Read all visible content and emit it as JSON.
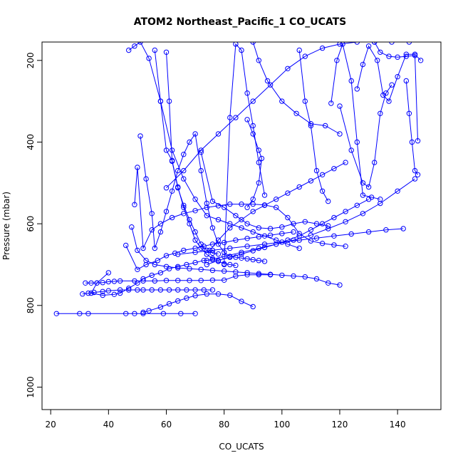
{
  "chart_data": {
    "type": "line",
    "title": "ATOM2 Northeast_Pacific_1 CO_UCATS",
    "xlabel": "CO_UCATS",
    "ylabel": "Pressure (mbar)",
    "xlim": [
      17,
      155
    ],
    "ylim": [
      1055,
      155
    ],
    "y_axis_inverted": true,
    "xticks": [
      20,
      40,
      60,
      80,
      100,
      120,
      140
    ],
    "yticks": [
      200,
      400,
      600,
      800,
      1000
    ],
    "grid": false,
    "legend": "none",
    "color": "#0000ff",
    "series": [
      {
        "x": [
          22,
          30,
          33,
          46,
          49,
          52,
          59,
          65,
          70
        ],
        "y": [
          820,
          820,
          820,
          820,
          820,
          820,
          820,
          820,
          820
        ]
      },
      {
        "x": [
          52,
          54,
          58,
          61,
          64,
          67,
          70,
          74,
          78,
          82,
          86,
          90
        ],
        "y": [
          817,
          813,
          804,
          796,
          789,
          782,
          776,
          772,
          772,
          775,
          790,
          803
        ]
      },
      {
        "x": [
          31,
          33,
          35,
          38,
          40,
          44,
          47,
          50,
          52,
          55,
          58,
          61,
          64,
          67,
          70,
          73,
          76
        ],
        "y": [
          772,
          770,
          768,
          766,
          764,
          762,
          762,
          762,
          762,
          762,
          762,
          762,
          762,
          762,
          762,
          762,
          762
        ]
      },
      {
        "x": [
          32,
          34,
          36,
          38,
          40,
          42,
          44,
          49,
          52,
          56,
          60,
          64,
          68,
          72,
          76,
          80,
          84,
          88,
          92,
          96
        ],
        "y": [
          745,
          745,
          745,
          744,
          742,
          741,
          740,
          740,
          740,
          740,
          739,
          739,
          739,
          739,
          738,
          738,
          728,
          725,
          725,
          725
        ]
      },
      {
        "x": [
          40,
          36,
          34,
          38,
          42,
          44,
          47,
          50,
          52,
          55,
          58,
          61,
          64,
          67,
          70,
          73,
          76
        ],
        "y": [
          720,
          745,
          770,
          775,
          773,
          770,
          758,
          745,
          735,
          726,
          720,
          710,
          705,
          700,
          695,
          690,
          688
        ]
      },
      {
        "x": [
          46,
          50,
          53,
          57,
          60,
          63,
          66,
          70,
          73,
          76,
          80,
          84,
          88,
          92,
          96,
          100,
          104
        ],
        "y": [
          653,
          712,
          700,
          690,
          678,
          672,
          665,
          660,
          655,
          650,
          646,
          640,
          636,
          632,
          628,
          624,
          620
        ]
      },
      {
        "x": [
          48,
          50,
          53,
          56,
          60,
          64,
          68,
          72,
          76,
          80,
          84,
          88,
          92,
          96,
          100,
          104,
          108,
          112,
          116,
          120
        ],
        "y": [
          608,
          665,
          690,
          700,
          705,
          708,
          710,
          712,
          714,
          716,
          718,
          720,
          722,
          724,
          726,
          728,
          730,
          735,
          745,
          750
        ]
      },
      {
        "x": [
          49,
          50,
          52,
          55,
          58,
          62,
          66,
          70,
          74,
          78,
          82,
          86,
          90,
          94,
          98,
          102,
          106,
          110,
          114,
          118,
          122
        ],
        "y": [
          553,
          462,
          660,
          615,
          600,
          585,
          575,
          568,
          560,
          556,
          552,
          552,
          552,
          554,
          560,
          585,
          624,
          642,
          648,
          652,
          655
        ]
      },
      {
        "x": [
          51,
          53,
          55,
          56,
          58,
          60,
          62,
          64,
          66,
          68,
          70,
          72,
          74,
          76,
          78,
          80,
          82,
          84,
          86,
          88,
          90,
          92,
          94
        ],
        "y": [
          385,
          490,
          575,
          660,
          620,
          570,
          520,
          470,
          430,
          400,
          380,
          470,
          550,
          610,
          650,
          670,
          680,
          682,
          684,
          686,
          688,
          690,
          692
        ]
      },
      {
        "x": [
          47,
          49,
          51,
          54,
          58,
          62,
          66,
          70,
          74,
          78,
          82,
          86,
          90,
          94,
          98,
          102,
          106
        ],
        "y": [
          175,
          165,
          155,
          195,
          300,
          420,
          490,
          540,
          580,
          590,
          600,
          610,
          620,
          630,
          640,
          650,
          660
        ]
      },
      {
        "x": [
          56,
          58,
          60,
          62,
          64,
          66,
          68,
          70,
          72,
          74,
          76,
          78,
          80,
          82,
          84
        ],
        "y": [
          175,
          300,
          420,
          445,
          510,
          560,
          600,
          640,
          660,
          675,
          685,
          692,
          698,
          700,
          702
        ]
      },
      {
        "x": [
          60,
          61,
          62,
          64,
          66,
          68,
          70,
          72,
          74,
          76,
          78
        ],
        "y": [
          180,
          300,
          447,
          512,
          555,
          590,
          620,
          650,
          665,
          672,
          674
        ]
      },
      {
        "x": [
          60,
          66,
          72,
          78,
          84,
          90,
          96,
          102,
          108,
          114,
          120,
          126,
          132,
          138,
          144
        ],
        "y": [
          512,
          470,
          420,
          380,
          340,
          300,
          260,
          220,
          190,
          170,
          160,
          155,
          155,
          155,
          155
        ]
      },
      {
        "x": [
          72,
          76,
          80,
          84,
          88,
          92,
          96,
          100,
          104,
          108,
          112,
          116
        ],
        "y": [
          425,
          545,
          560,
          580,
          600,
          610,
          612,
          608,
          600,
          595,
          600,
          605
        ]
      },
      {
        "x": [
          64,
          70,
          76,
          82,
          88,
          94,
          100,
          106,
          112,
          118,
          124,
          130,
          136,
          142
        ],
        "y": [
          675,
          670,
          665,
          660,
          655,
          650,
          645,
          640,
          635,
          630,
          625,
          620,
          615,
          612
        ]
      },
      {
        "x": [
          74,
          78,
          82,
          86,
          90,
          94,
          98,
          102,
          106,
          110,
          114,
          118,
          122,
          126,
          130
        ],
        "y": [
          700,
          690,
          682,
          674,
          666,
          658,
          650,
          640,
          630,
          615,
          600,
          585,
          570,
          555,
          540
        ]
      },
      {
        "x": [
          74,
          80,
          86,
          92,
          98,
          104,
          110,
          116,
          122,
          128,
          134,
          140,
          146
        ],
        "y": [
          690,
          680,
          670,
          660,
          650,
          640,
          628,
          612,
          595,
          575,
          550,
          520,
          490
        ]
      },
      {
        "x": [
          75,
          78,
          82,
          86,
          90,
          94,
          98,
          102,
          106,
          110,
          114,
          118,
          122
        ],
        "y": [
          665,
          640,
          610,
          590,
          570,
          555,
          540,
          525,
          510,
          495,
          480,
          465,
          450
        ]
      },
      {
        "x": [
          80,
          82,
          84,
          86,
          88,
          90,
          92,
          94
        ],
        "y": [
          700,
          340,
          160,
          175,
          280,
          360,
          450,
          530
        ]
      },
      {
        "x": [
          88,
          90,
          92,
          93,
          92,
          90,
          88
        ],
        "y": [
          345,
          380,
          420,
          440,
          500,
          540,
          560
        ]
      },
      {
        "x": [
          90,
          92,
          95,
          100,
          105,
          110,
          115,
          120
        ],
        "y": [
          155,
          200,
          250,
          300,
          330,
          355,
          360,
          380
        ]
      },
      {
        "x": [
          106,
          108,
          110,
          112,
          114,
          116
        ],
        "y": [
          175,
          300,
          360,
          470,
          520,
          545
        ]
      },
      {
        "x": [
          117,
          119,
          121,
          124,
          126,
          128,
          131,
          134
        ],
        "y": [
          305,
          200,
          160,
          250,
          400,
          530,
          535,
          540
        ]
      },
      {
        "x": [
          120,
          124,
          128,
          130,
          132,
          134,
          136,
          138
        ],
        "y": [
          312,
          420,
          500,
          510,
          450,
          330,
          280,
          260
        ]
      },
      {
        "x": [
          126,
          128,
          130,
          133,
          135,
          137,
          140,
          143,
          146,
          148
        ],
        "y": [
          270,
          210,
          165,
          200,
          285,
          300,
          240,
          185,
          185,
          200
        ]
      },
      {
        "x": [
          132,
          134,
          137,
          140,
          143,
          146,
          147
        ],
        "y": [
          155,
          180,
          190,
          192,
          190,
          188,
          397
        ]
      },
      {
        "x": [
          143,
          144,
          145,
          146,
          147
        ],
        "y": [
          250,
          330,
          400,
          470,
          480
        ]
      }
    ]
  }
}
